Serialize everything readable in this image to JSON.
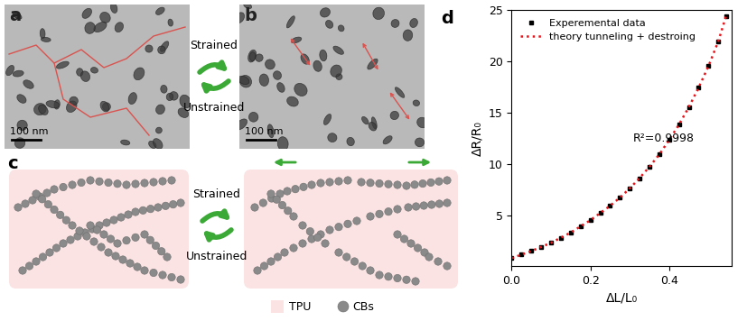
{
  "panels": {
    "labels": [
      "a",
      "b",
      "c",
      "d"
    ],
    "scale_bar": "100 nm",
    "switch": {
      "top": "Strained",
      "bottom": "Unstrained"
    },
    "legend": [
      {
        "name": "TPU",
        "color": "#fbe3e3"
      },
      {
        "name": "CBs",
        "color": "#8a8a8a"
      }
    ]
  },
  "chart_data": {
    "type": "line",
    "x_label": "ΔL/L₀",
    "y_label": "ΔR/R₀",
    "xlim": [
      0,
      0.56
    ],
    "ylim": [
      0,
      25
    ],
    "xticks": [
      0.0,
      0.2,
      0.4
    ],
    "yticks": [
      5,
      10,
      15,
      20,
      25
    ],
    "legend": "upper left",
    "annotations": [
      "R²=0.9998"
    ],
    "x": [
      0.0,
      0.025,
      0.05,
      0.075,
      0.1,
      0.125,
      0.15,
      0.175,
      0.2,
      0.225,
      0.25,
      0.275,
      0.3,
      0.325,
      0.35,
      0.375,
      0.4,
      0.425,
      0.45,
      0.475,
      0.5,
      0.525,
      0.545
    ],
    "series": [
      {
        "name": "Experemental data",
        "type": "scatter",
        "color": "#000000",
        "marker": "square",
        "values": [
          0.8,
          1.15,
          1.5,
          1.9,
          2.3,
          2.8,
          3.3,
          3.9,
          4.5,
          5.2,
          5.9,
          6.7,
          7.6,
          8.6,
          9.7,
          10.9,
          12.3,
          13.8,
          15.5,
          17.4,
          19.5,
          21.9,
          24.4
        ]
      },
      {
        "name": "theory tunneling + destroing",
        "type": "line",
        "color": "#e8141a",
        "line_style": "dotted",
        "values": [
          0.8,
          1.15,
          1.5,
          1.9,
          2.3,
          2.8,
          3.3,
          3.9,
          4.5,
          5.2,
          5.9,
          6.7,
          7.6,
          8.6,
          9.7,
          10.9,
          12.3,
          13.8,
          15.5,
          17.4,
          19.5,
          21.9,
          24.4
        ]
      }
    ]
  }
}
